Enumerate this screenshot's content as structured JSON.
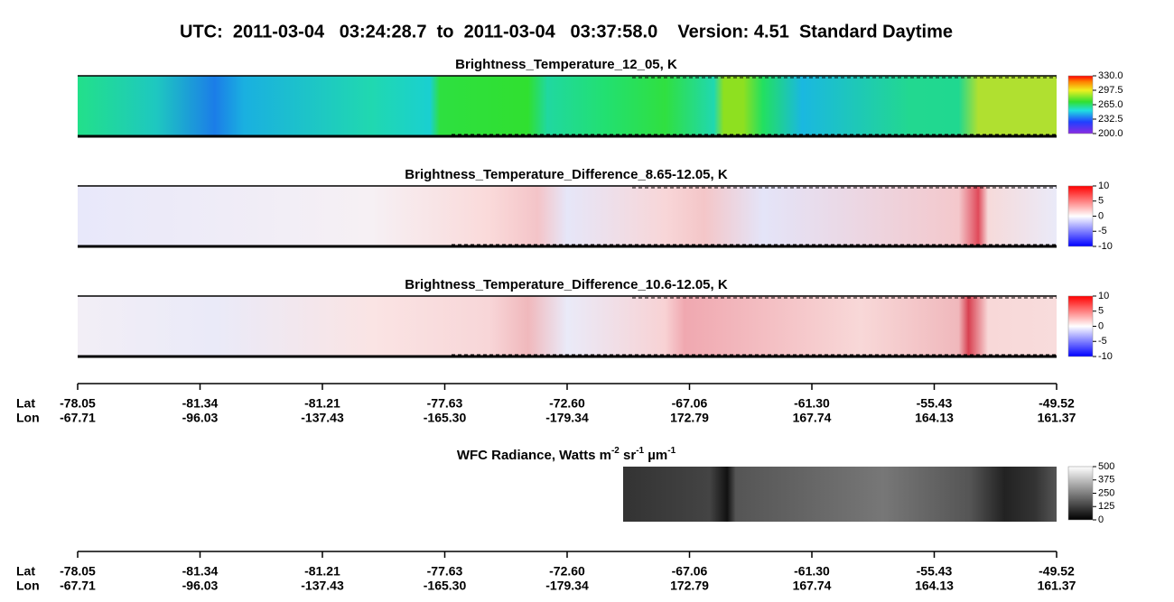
{
  "title": "UTC:  2011-03-04   03:24:28.7  to  2011-03-04   03:37:58.0    Version: 4.51  Standard Daytime",
  "panels": [
    {
      "title": "Brightness_Temperature_12_05, K",
      "colorbar": [
        "330.0",
        "297.5",
        "265.0",
        "232.5",
        "200.0"
      ]
    },
    {
      "title": "Brightness_Temperature_Difference_8.65-12.05, K",
      "colorbar": [
        "10",
        "5",
        "0",
        "-5",
        "-10"
      ]
    },
    {
      "title": "Brightness_Temperature_Difference_10.6-12.05, K",
      "colorbar": [
        "10",
        "5",
        "0",
        "-5",
        "-10"
      ]
    }
  ],
  "wfc": {
    "title": [
      "WFC Radiance, Watts m",
      "-2",
      " sr",
      "-1",
      " µm",
      "-1"
    ],
    "colorbar": [
      "500",
      "375",
      "250",
      "125",
      "0"
    ]
  },
  "axes": [
    {
      "lat_label": "Lat",
      "lon_label": "Lon",
      "lat": [
        "-78.05",
        "-81.34",
        "-81.21",
        "-77.63",
        "-72.60",
        "-67.06",
        "-61.30",
        "-55.43",
        "-49.52"
      ],
      "lon": [
        "-67.71",
        "-96.03",
        "-137.43",
        "-165.30",
        "-179.34",
        "172.79",
        "167.74",
        "164.13",
        "161.37"
      ]
    },
    {
      "lat_label": "Lat",
      "lon_label": "Lon",
      "lat": [
        "-78.05",
        "-81.34",
        "-81.21",
        "-77.63",
        "-72.60",
        "-67.06",
        "-61.30",
        "-55.43",
        "-49.52"
      ],
      "lon": [
        "-67.71",
        "-96.03",
        "-137.43",
        "-165.30",
        "-179.34",
        "172.79",
        "167.74",
        "164.13",
        "161.37"
      ]
    }
  ]
}
